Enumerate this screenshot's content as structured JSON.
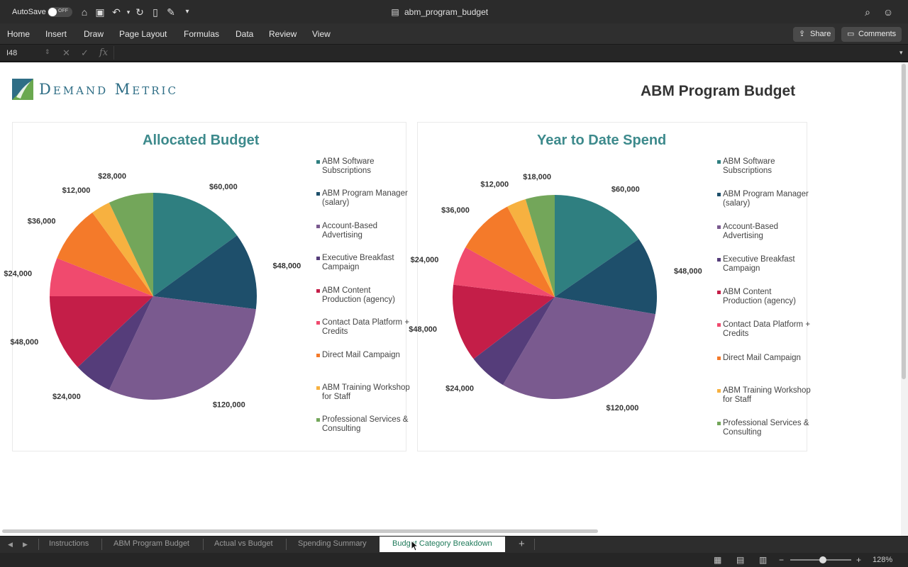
{
  "titlebar": {
    "autosave_label": "AutoSave",
    "autosave_state": "OFF",
    "doc_title": "abm_program_budget"
  },
  "ribbon": {
    "menus": [
      "Home",
      "Insert",
      "Draw",
      "Page Layout",
      "Formulas",
      "Data",
      "Review",
      "View"
    ],
    "share_label": "Share",
    "comments_label": "Comments"
  },
  "formula_bar": {
    "cell_ref": "I48",
    "fx": "fx",
    "value": ""
  },
  "sheet": {
    "logo_text": "Demand Metric",
    "page_title": "ABM Program Budget"
  },
  "legend": [
    {
      "label": "ABM Software Subscriptions",
      "color": "#2f7f80"
    },
    {
      "label": "ABM Program Manager (salary)",
      "color": "#1e4f6b"
    },
    {
      "label": "Account-Based Advertising",
      "color": "#7a5a8f"
    },
    {
      "label": "Executive Breakfast Campaign",
      "color": "#553d7a"
    },
    {
      "label": "ABM Content Production (agency)",
      "color": "#c41e48"
    },
    {
      "label": "Contact Data Platform + Credits",
      "color": "#f04a6e"
    },
    {
      "label": "Direct Mail Campaign",
      "color": "#f47a2a"
    },
    {
      "label": "ABM Training Workshop for Staff",
      "color": "#f7b140"
    },
    {
      "label": "Professional Services & Consulting",
      "color": "#73a65a"
    }
  ],
  "chart_data": [
    {
      "type": "pie",
      "title": "Allocated Budget",
      "categories": [
        "ABM Software Subscriptions",
        "ABM Program Manager (salary)",
        "Account-Based Advertising",
        "Executive Breakfast Campaign",
        "ABM Content Production (agency)",
        "Contact Data Platform + Credits",
        "Direct Mail Campaign",
        "ABM Training Workshop for Staff",
        "Professional Services & Consulting"
      ],
      "values": [
        60000,
        48000,
        120000,
        24000,
        48000,
        24000,
        36000,
        12000,
        28000
      ],
      "data_labels": [
        "$60,000",
        "$48,000",
        "$120,000",
        "$24,000",
        "$48,000",
        "$24,000",
        "$36,000",
        "$12,000",
        "$28,000"
      ],
      "legend": "right"
    },
    {
      "type": "pie",
      "title": "Year to Date Spend",
      "categories": [
        "ABM Software Subscriptions",
        "ABM Program Manager (salary)",
        "Account-Based Advertising",
        "Executive Breakfast Campaign",
        "ABM Content Production (agency)",
        "Contact Data Platform + Credits",
        "Direct Mail Campaign",
        "ABM Training Workshop for Staff",
        "Professional Services & Consulting"
      ],
      "values": [
        60000,
        48000,
        120000,
        24000,
        48000,
        24000,
        36000,
        12000,
        18000
      ],
      "data_labels": [
        "$60,000",
        "$48,000",
        "$120,000",
        "$24,000",
        "$48,000",
        "$24,000",
        "$36,000",
        "$12,000",
        "$18,000"
      ],
      "legend": "right"
    }
  ],
  "tabs": [
    "Instructions",
    "ABM Program Budget",
    "Actual vs Budget",
    "Spending Summary",
    "Budget Category Breakdown"
  ],
  "active_tab": "Budget Category Breakdown",
  "status": {
    "zoom": "128%"
  }
}
